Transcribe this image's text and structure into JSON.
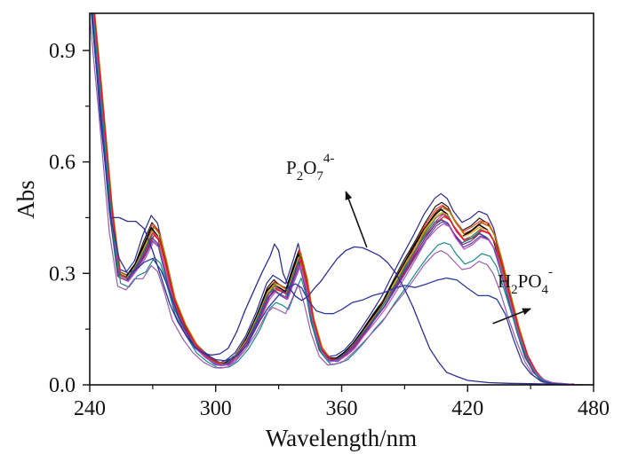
{
  "chart_data": {
    "type": "line",
    "title": "",
    "xlabel": "Wavelength/nm",
    "ylabel": "Abs",
    "xlim": [
      240,
      480
    ],
    "ylim": [
      0.0,
      1.0
    ],
    "xticks": [
      240,
      300,
      360,
      420,
      480
    ],
    "xtick_labels": [
      "240",
      "300",
      "360",
      "420",
      "480"
    ],
    "xminor": [
      270,
      330,
      390,
      450
    ],
    "yticks": [
      0.0,
      0.3,
      0.6,
      0.9
    ],
    "ytick_labels": [
      "0.0",
      "0.3",
      "0.6",
      "0.9"
    ],
    "yminor": [
      0.15,
      0.45,
      0.75
    ],
    "grid": false,
    "legend": "none",
    "family_shape": {
      "x": [
        240,
        245,
        250,
        254,
        258,
        262,
        266,
        270,
        273,
        276,
        280,
        285,
        290,
        295,
        300,
        303,
        306,
        310,
        315,
        320,
        325,
        328,
        331,
        334,
        337,
        340,
        343,
        346,
        350,
        354,
        358,
        362,
        366,
        370,
        375,
        380,
        385,
        390,
        395,
        400,
        405,
        408,
        411,
        414,
        418,
        422,
        426,
        430,
        433,
        436,
        440,
        444,
        448,
        452,
        456,
        460,
        465,
        470
      ],
      "y": [
        1.1,
        0.8,
        0.48,
        0.3,
        0.29,
        0.32,
        0.37,
        0.42,
        0.4,
        0.33,
        0.23,
        0.16,
        0.11,
        0.08,
        0.06,
        0.055,
        0.06,
        0.08,
        0.12,
        0.18,
        0.25,
        0.27,
        0.26,
        0.25,
        0.3,
        0.35,
        0.28,
        0.18,
        0.1,
        0.07,
        0.07,
        0.085,
        0.11,
        0.14,
        0.18,
        0.22,
        0.27,
        0.32,
        0.37,
        0.42,
        0.46,
        0.47,
        0.46,
        0.43,
        0.4,
        0.41,
        0.43,
        0.42,
        0.39,
        0.33,
        0.24,
        0.15,
        0.08,
        0.035,
        0.012,
        0.004,
        0.001,
        0.0
      ]
    },
    "series": [
      {
        "name": "s01",
        "color": "#2a2a8a",
        "scale": 1.09
      },
      {
        "name": "s02",
        "color": "#1a1a1a",
        "scale": 1.04
      },
      {
        "name": "s03",
        "color": "#ff3a1a",
        "scale": 1.03
      },
      {
        "name": "s04",
        "color": "#8b2a1a",
        "scale": 1.02
      },
      {
        "name": "s05",
        "color": "#b8860b",
        "scale": 1.01
      },
      {
        "name": "s06",
        "color": "#000000",
        "scale": 1.0
      },
      {
        "name": "s07",
        "color": "#e8a020",
        "scale": 0.99
      },
      {
        "name": "s08",
        "color": "#3a7a2a",
        "scale": 0.98
      },
      {
        "name": "s09",
        "color": "#ff1a8a",
        "scale": 0.97
      },
      {
        "name": "s10",
        "color": "#d81a1a",
        "scale": 0.96
      },
      {
        "name": "s11",
        "color": "#1a7a7a",
        "scale": 0.95
      },
      {
        "name": "s12",
        "color": "#7a2a8a",
        "scale": 0.94
      },
      {
        "name": "s13",
        "color": "#4a4aaa",
        "scale": 0.93
      },
      {
        "name": "s14",
        "color": "#c04ac0",
        "scale": 0.92
      },
      {
        "name": "s15",
        "color": "#1a8a8a",
        "scale": 0.82
      },
      {
        "name": "s16",
        "color": "#9a5ab0",
        "scale": 0.77
      }
    ],
    "special_series": [
      {
        "name": "P2O7 4- added",
        "color": "#2d2d8f",
        "x": [
          240,
          245,
          250,
          254,
          258,
          262,
          266,
          270,
          274,
          278,
          282,
          286,
          290,
          294,
          298,
          302,
          306,
          310,
          314,
          318,
          322,
          326,
          328,
          330,
          332,
          335,
          338,
          341,
          344,
          347,
          350,
          354,
          358,
          362,
          366,
          370,
          374,
          378,
          382,
          386,
          390,
          394,
          398,
          402,
          406,
          410,
          415,
          420,
          430,
          440,
          450,
          460,
          470,
          480
        ],
        "y": [
          1.08,
          0.72,
          0.45,
          0.45,
          0.44,
          0.44,
          0.42,
          0.36,
          0.29,
          0.22,
          0.17,
          0.13,
          0.1,
          0.085,
          0.08,
          0.085,
          0.1,
          0.14,
          0.2,
          0.25,
          0.3,
          0.35,
          0.38,
          0.36,
          0.3,
          0.26,
          0.24,
          0.23,
          0.24,
          0.26,
          0.28,
          0.31,
          0.34,
          0.36,
          0.37,
          0.37,
          0.36,
          0.35,
          0.33,
          0.3,
          0.26,
          0.21,
          0.15,
          0.1,
          0.06,
          0.035,
          0.02,
          0.012,
          0.006,
          0.004,
          0.003,
          0.002,
          0.001,
          0.0
        ]
      },
      {
        "name": "H2PO4- added",
        "color": "#2d3a9a",
        "x": [
          240,
          245,
          250,
          254,
          258,
          262,
          266,
          270,
          274,
          278,
          282,
          286,
          290,
          295,
          300,
          305,
          310,
          315,
          320,
          325,
          330,
          335,
          338,
          341,
          344,
          348,
          352,
          356,
          360,
          365,
          370,
          375,
          380,
          385,
          390,
          395,
          400,
          405,
          410,
          415,
          420,
          425,
          430,
          434,
          438,
          442,
          446,
          450,
          455,
          460,
          470
        ],
        "y": [
          1.05,
          0.74,
          0.45,
          0.34,
          0.3,
          0.31,
          0.33,
          0.34,
          0.31,
          0.25,
          0.19,
          0.14,
          0.1,
          0.08,
          0.07,
          0.065,
          0.075,
          0.11,
          0.16,
          0.21,
          0.24,
          0.26,
          0.27,
          0.26,
          0.23,
          0.2,
          0.19,
          0.19,
          0.2,
          0.22,
          0.23,
          0.24,
          0.25,
          0.26,
          0.27,
          0.26,
          0.27,
          0.28,
          0.29,
          0.28,
          0.26,
          0.24,
          0.24,
          0.23,
          0.19,
          0.12,
          0.06,
          0.03,
          0.01,
          0.004,
          0.0
        ]
      }
    ],
    "annotations": [
      {
        "name": "p2o7-label",
        "parts": [
          [
            "P",
            "n"
          ],
          [
            "2",
            "sub"
          ],
          [
            "O",
            "n"
          ],
          [
            "7",
            "sub"
          ],
          [
            "4-",
            "sup"
          ]
        ],
        "arrow_from": [
          372,
          0.37
        ],
        "arrow_to": [
          362,
          0.52
        ]
      },
      {
        "name": "h2po4-label",
        "parts": [
          [
            "H",
            "n"
          ],
          [
            "2",
            "sub"
          ],
          [
            "PO",
            "n"
          ],
          [
            "4",
            "sub"
          ],
          [
            "-",
            "sup"
          ]
        ],
        "arrow_from": [
          432,
          0.165
        ],
        "arrow_to": [
          450,
          0.205
        ]
      }
    ]
  }
}
